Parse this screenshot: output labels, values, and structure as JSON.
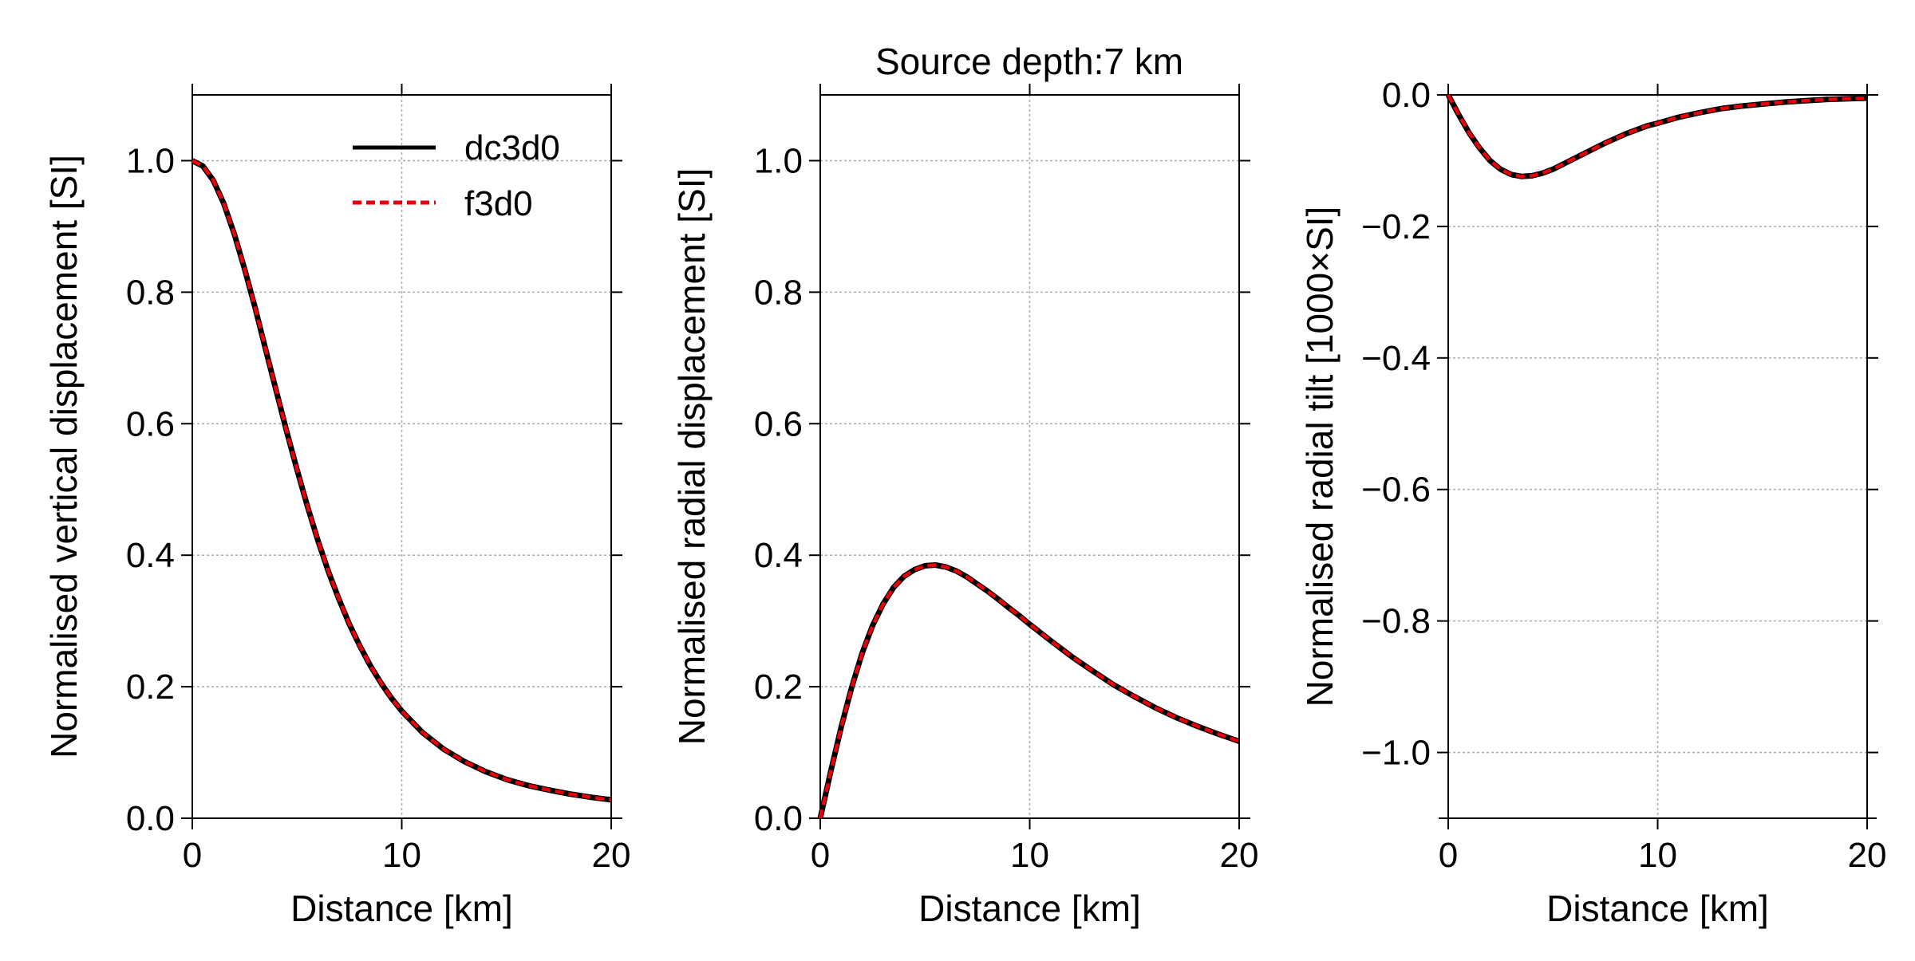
{
  "figure": {
    "title": "Source depth:7 km"
  },
  "legend": {
    "entries": [
      {
        "label": "dc3d0",
        "color": "#000000",
        "style": "solid"
      },
      {
        "label": "f3d0",
        "color": "#e8000b",
        "style": "dashed"
      }
    ],
    "placement": "upper-right of first panel"
  },
  "chart_data": [
    {
      "type": "line",
      "title": "",
      "xlabel": "Distance [km]",
      "ylabel": "Normalised vertical displacement [SI]",
      "xlim": [
        0,
        20
      ],
      "ylim": [
        0,
        1.1
      ],
      "xticks": [
        0,
        10,
        20
      ],
      "xtick_labels": [
        "0",
        "10",
        "20"
      ],
      "yticks": [
        0,
        0.2,
        0.4,
        0.6,
        0.8,
        1.0
      ],
      "ytick_labels": [
        "0.0",
        "0.2",
        "0.4",
        "0.6",
        "0.8",
        "1.0"
      ],
      "grid": true,
      "x": [
        0,
        0.5,
        1,
        1.5,
        2,
        2.5,
        3,
        3.5,
        4,
        4.5,
        5,
        5.5,
        6,
        6.5,
        7,
        7.5,
        8,
        8.5,
        9,
        9.5,
        10,
        11,
        12,
        13,
        14,
        15,
        16,
        17,
        18,
        19,
        20
      ],
      "series": [
        {
          "name": "dc3d0",
          "values": [
            1.0,
            0.992,
            0.97,
            0.935,
            0.889,
            0.835,
            0.776,
            0.713,
            0.651,
            0.589,
            0.53,
            0.474,
            0.422,
            0.375,
            0.333,
            0.295,
            0.262,
            0.232,
            0.206,
            0.183,
            0.163,
            0.13,
            0.105,
            0.086,
            0.071,
            0.059,
            0.05,
            0.043,
            0.037,
            0.032,
            0.028
          ],
          "color": "#000000",
          "style": "solid"
        },
        {
          "name": "f3d0",
          "values": [
            1.0,
            0.992,
            0.97,
            0.935,
            0.889,
            0.835,
            0.776,
            0.713,
            0.651,
            0.589,
            0.53,
            0.474,
            0.422,
            0.375,
            0.333,
            0.295,
            0.262,
            0.232,
            0.206,
            0.183,
            0.163,
            0.13,
            0.105,
            0.086,
            0.071,
            0.059,
            0.05,
            0.043,
            0.037,
            0.032,
            0.028
          ],
          "color": "#e8000b",
          "style": "dashed"
        }
      ]
    },
    {
      "type": "line",
      "title": "Source depth:7 km",
      "xlabel": "Distance [km]",
      "ylabel": "Normalised radial displacement [SI]",
      "xlim": [
        0,
        20
      ],
      "ylim": [
        0,
        1.1
      ],
      "xticks": [
        0,
        10,
        20
      ],
      "xtick_labels": [
        "0",
        "10",
        "20"
      ],
      "yticks": [
        0,
        0.2,
        0.4,
        0.6,
        0.8,
        1.0
      ],
      "ytick_labels": [
        "0.0",
        "0.2",
        "0.4",
        "0.6",
        "0.8",
        "1.0"
      ],
      "grid": true,
      "x": [
        0,
        0.5,
        1,
        1.5,
        2,
        2.5,
        3,
        3.5,
        4,
        4.5,
        5,
        5.5,
        6,
        6.5,
        7,
        7.5,
        8,
        8.5,
        9,
        9.5,
        10,
        11,
        12,
        13,
        14,
        15,
        16,
        17,
        18,
        19,
        20
      ],
      "series": [
        {
          "name": "dc3d0",
          "values": [
            0,
            0.071,
            0.139,
            0.199,
            0.251,
            0.293,
            0.326,
            0.351,
            0.368,
            0.378,
            0.384,
            0.385,
            0.382,
            0.376,
            0.367,
            0.356,
            0.345,
            0.333,
            0.32,
            0.308,
            0.295,
            0.27,
            0.246,
            0.224,
            0.203,
            0.185,
            0.168,
            0.153,
            0.14,
            0.128,
            0.117
          ],
          "color": "#000000",
          "style": "solid"
        },
        {
          "name": "f3d0",
          "values": [
            0,
            0.071,
            0.139,
            0.199,
            0.251,
            0.293,
            0.326,
            0.351,
            0.368,
            0.378,
            0.384,
            0.385,
            0.382,
            0.376,
            0.367,
            0.356,
            0.345,
            0.333,
            0.32,
            0.308,
            0.295,
            0.27,
            0.246,
            0.224,
            0.203,
            0.185,
            0.168,
            0.153,
            0.14,
            0.128,
            0.117
          ],
          "color": "#e8000b",
          "style": "dashed"
        }
      ]
    },
    {
      "type": "line",
      "title": "",
      "xlabel": "Distance [km]",
      "ylabel": "Normalised radial tilt [1000×SI]",
      "xlim": [
        0,
        20
      ],
      "ylim": [
        -1.1,
        0.0
      ],
      "xticks": [
        0,
        10,
        20
      ],
      "xtick_labels": [
        "0",
        "10",
        "20"
      ],
      "yticks": [
        0,
        -0.2,
        -0.4,
        -0.6,
        -0.8,
        -1.0
      ],
      "ytick_labels": [
        "0.0",
        "−0.2",
        "−0.4",
        "−0.6",
        "−0.8",
        "−1.0"
      ],
      "grid": true,
      "x": [
        0,
        0.5,
        1,
        1.5,
        2,
        2.5,
        3,
        3.5,
        4,
        4.5,
        5,
        5.5,
        6,
        6.5,
        7,
        7.5,
        8,
        8.5,
        9,
        9.5,
        10,
        11,
        12,
        13,
        14,
        15,
        16,
        17,
        18,
        19,
        20
      ],
      "series": [
        {
          "name": "dc3d0",
          "values": [
            0,
            -0.03,
            -0.058,
            -0.081,
            -0.1,
            -0.113,
            -0.121,
            -0.124,
            -0.123,
            -0.119,
            -0.113,
            -0.105,
            -0.097,
            -0.089,
            -0.081,
            -0.073,
            -0.066,
            -0.059,
            -0.053,
            -0.047,
            -0.043,
            -0.034,
            -0.027,
            -0.021,
            -0.017,
            -0.014,
            -0.011,
            -0.009,
            -0.007,
            -0.006,
            -0.005
          ],
          "color": "#000000",
          "style": "solid"
        },
        {
          "name": "f3d0",
          "values": [
            0,
            -0.03,
            -0.058,
            -0.081,
            -0.1,
            -0.113,
            -0.121,
            -0.124,
            -0.123,
            -0.119,
            -0.113,
            -0.105,
            -0.097,
            -0.089,
            -0.081,
            -0.073,
            -0.066,
            -0.059,
            -0.053,
            -0.047,
            -0.043,
            -0.034,
            -0.027,
            -0.021,
            -0.017,
            -0.014,
            -0.011,
            -0.009,
            -0.007,
            -0.006,
            -0.005
          ],
          "color": "#e8000b",
          "style": "dashed"
        }
      ]
    }
  ]
}
